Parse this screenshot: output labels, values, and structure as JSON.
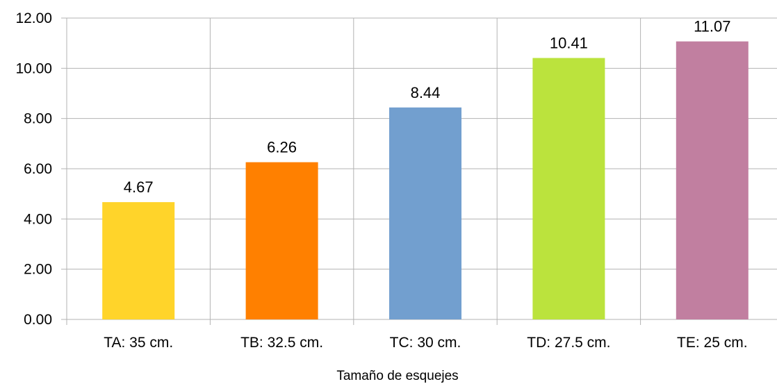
{
  "chart_data": {
    "type": "bar",
    "categories": [
      "TA: 35 cm.",
      "TB: 32.5 cm.",
      "TC: 30 cm.",
      "TD: 27.5 cm.",
      "TE: 25 cm."
    ],
    "values": [
      4.67,
      6.26,
      8.44,
      10.41,
      11.07
    ],
    "value_labels": [
      "4.67",
      "6.26",
      "8.44",
      "10.41",
      "11.07"
    ],
    "colors": [
      "#ffd42a",
      "#ff8000",
      "#729fcf",
      "#bbe33d",
      "#c17fa0"
    ],
    "title": "",
    "xlabel": "Tamaño de esquejes",
    "ylabel": "",
    "ylim": [
      0,
      12
    ],
    "yticks": [
      0,
      2,
      4,
      6,
      8,
      10,
      12
    ],
    "ytick_labels": [
      "0.00",
      "2.00",
      "4.00",
      "6.00",
      "8.00",
      "10.00",
      "12.00"
    ],
    "grid": true,
    "legend": "none"
  }
}
